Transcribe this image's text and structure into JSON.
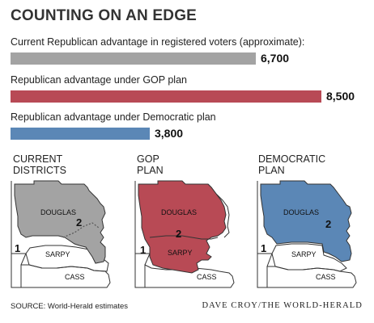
{
  "title": "COUNTING ON AN EDGE",
  "colors": {
    "current": "#a3a3a3",
    "gop": "#b84a55",
    "democratic": "#5b87b6"
  },
  "chart_data": {
    "type": "bar",
    "orientation": "horizontal",
    "title": "COUNTING ON AN EDGE",
    "categories": [
      "Current Republican advantage in registered voters (approximate):",
      "Republican advantage under GOP plan",
      "Republican advantage under Democratic plan"
    ],
    "values": [
      6700,
      8500,
      3800
    ],
    "value_labels": [
      "6,700",
      "8,500",
      "3,800"
    ],
    "xlim": [
      0,
      8500
    ],
    "grid": false,
    "bar_colors": [
      "#a3a3a3",
      "#b84a55",
      "#5b87b6"
    ]
  },
  "maps": [
    {
      "title_lines": [
        "CURRENT",
        "DISTRICTS"
      ],
      "fill": "#a3a3a3",
      "counties": [
        "DOUGLAS",
        "SARPY",
        "CASS"
      ],
      "districts": [
        "1",
        "2"
      ]
    },
    {
      "title_lines": [
        "GOP",
        "PLAN"
      ],
      "fill": "#b84a55",
      "counties": [
        "DOUGLAS",
        "SARPY",
        "CASS"
      ],
      "districts": [
        "1",
        "2"
      ]
    },
    {
      "title_lines": [
        "DEMOCRATIC",
        "PLAN"
      ],
      "fill": "#5b87b6",
      "counties": [
        "DOUGLAS",
        "SARPY",
        "CASS"
      ],
      "districts": [
        "1",
        "2"
      ]
    }
  ],
  "source": "SOURCE: World-Herald estimates",
  "credit": "DAVE CROY/THE WORLD-HERALD"
}
